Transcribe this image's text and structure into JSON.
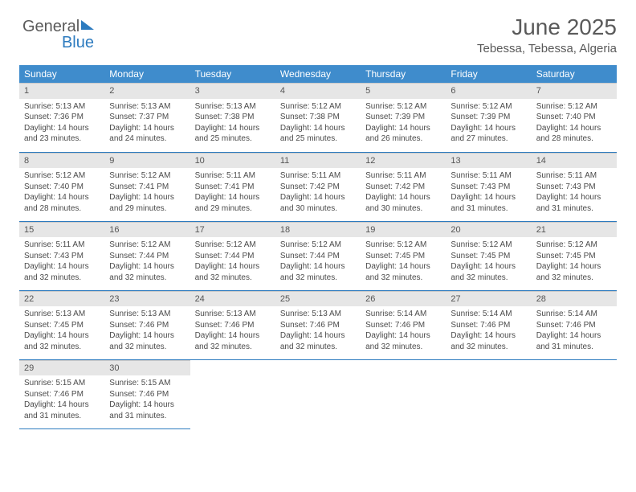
{
  "logo": {
    "text1": "General",
    "text2": "Blue"
  },
  "header": {
    "title": "June 2025",
    "subtitle": "Tebessa, Tebessa, Algeria"
  },
  "weekdays": [
    "Sunday",
    "Monday",
    "Tuesday",
    "Wednesday",
    "Thursday",
    "Friday",
    "Saturday"
  ],
  "weeks": [
    [
      {
        "n": "1",
        "rise": "Sunrise: 5:13 AM",
        "set": "Sunset: 7:36 PM",
        "d1": "Daylight: 14 hours",
        "d2": "and 23 minutes."
      },
      {
        "n": "2",
        "rise": "Sunrise: 5:13 AM",
        "set": "Sunset: 7:37 PM",
        "d1": "Daylight: 14 hours",
        "d2": "and 24 minutes."
      },
      {
        "n": "3",
        "rise": "Sunrise: 5:13 AM",
        "set": "Sunset: 7:38 PM",
        "d1": "Daylight: 14 hours",
        "d2": "and 25 minutes."
      },
      {
        "n": "4",
        "rise": "Sunrise: 5:12 AM",
        "set": "Sunset: 7:38 PM",
        "d1": "Daylight: 14 hours",
        "d2": "and 25 minutes."
      },
      {
        "n": "5",
        "rise": "Sunrise: 5:12 AM",
        "set": "Sunset: 7:39 PM",
        "d1": "Daylight: 14 hours",
        "d2": "and 26 minutes."
      },
      {
        "n": "6",
        "rise": "Sunrise: 5:12 AM",
        "set": "Sunset: 7:39 PM",
        "d1": "Daylight: 14 hours",
        "d2": "and 27 minutes."
      },
      {
        "n": "7",
        "rise": "Sunrise: 5:12 AM",
        "set": "Sunset: 7:40 PM",
        "d1": "Daylight: 14 hours",
        "d2": "and 28 minutes."
      }
    ],
    [
      {
        "n": "8",
        "rise": "Sunrise: 5:12 AM",
        "set": "Sunset: 7:40 PM",
        "d1": "Daylight: 14 hours",
        "d2": "and 28 minutes."
      },
      {
        "n": "9",
        "rise": "Sunrise: 5:12 AM",
        "set": "Sunset: 7:41 PM",
        "d1": "Daylight: 14 hours",
        "d2": "and 29 minutes."
      },
      {
        "n": "10",
        "rise": "Sunrise: 5:11 AM",
        "set": "Sunset: 7:41 PM",
        "d1": "Daylight: 14 hours",
        "d2": "and 29 minutes."
      },
      {
        "n": "11",
        "rise": "Sunrise: 5:11 AM",
        "set": "Sunset: 7:42 PM",
        "d1": "Daylight: 14 hours",
        "d2": "and 30 minutes."
      },
      {
        "n": "12",
        "rise": "Sunrise: 5:11 AM",
        "set": "Sunset: 7:42 PM",
        "d1": "Daylight: 14 hours",
        "d2": "and 30 minutes."
      },
      {
        "n": "13",
        "rise": "Sunrise: 5:11 AM",
        "set": "Sunset: 7:43 PM",
        "d1": "Daylight: 14 hours",
        "d2": "and 31 minutes."
      },
      {
        "n": "14",
        "rise": "Sunrise: 5:11 AM",
        "set": "Sunset: 7:43 PM",
        "d1": "Daylight: 14 hours",
        "d2": "and 31 minutes."
      }
    ],
    [
      {
        "n": "15",
        "rise": "Sunrise: 5:11 AM",
        "set": "Sunset: 7:43 PM",
        "d1": "Daylight: 14 hours",
        "d2": "and 32 minutes."
      },
      {
        "n": "16",
        "rise": "Sunrise: 5:12 AM",
        "set": "Sunset: 7:44 PM",
        "d1": "Daylight: 14 hours",
        "d2": "and 32 minutes."
      },
      {
        "n": "17",
        "rise": "Sunrise: 5:12 AM",
        "set": "Sunset: 7:44 PM",
        "d1": "Daylight: 14 hours",
        "d2": "and 32 minutes."
      },
      {
        "n": "18",
        "rise": "Sunrise: 5:12 AM",
        "set": "Sunset: 7:44 PM",
        "d1": "Daylight: 14 hours",
        "d2": "and 32 minutes."
      },
      {
        "n": "19",
        "rise": "Sunrise: 5:12 AM",
        "set": "Sunset: 7:45 PM",
        "d1": "Daylight: 14 hours",
        "d2": "and 32 minutes."
      },
      {
        "n": "20",
        "rise": "Sunrise: 5:12 AM",
        "set": "Sunset: 7:45 PM",
        "d1": "Daylight: 14 hours",
        "d2": "and 32 minutes."
      },
      {
        "n": "21",
        "rise": "Sunrise: 5:12 AM",
        "set": "Sunset: 7:45 PM",
        "d1": "Daylight: 14 hours",
        "d2": "and 32 minutes."
      }
    ],
    [
      {
        "n": "22",
        "rise": "Sunrise: 5:13 AM",
        "set": "Sunset: 7:45 PM",
        "d1": "Daylight: 14 hours",
        "d2": "and 32 minutes."
      },
      {
        "n": "23",
        "rise": "Sunrise: 5:13 AM",
        "set": "Sunset: 7:46 PM",
        "d1": "Daylight: 14 hours",
        "d2": "and 32 minutes."
      },
      {
        "n": "24",
        "rise": "Sunrise: 5:13 AM",
        "set": "Sunset: 7:46 PM",
        "d1": "Daylight: 14 hours",
        "d2": "and 32 minutes."
      },
      {
        "n": "25",
        "rise": "Sunrise: 5:13 AM",
        "set": "Sunset: 7:46 PM",
        "d1": "Daylight: 14 hours",
        "d2": "and 32 minutes."
      },
      {
        "n": "26",
        "rise": "Sunrise: 5:14 AM",
        "set": "Sunset: 7:46 PM",
        "d1": "Daylight: 14 hours",
        "d2": "and 32 minutes."
      },
      {
        "n": "27",
        "rise": "Sunrise: 5:14 AM",
        "set": "Sunset: 7:46 PM",
        "d1": "Daylight: 14 hours",
        "d2": "and 32 minutes."
      },
      {
        "n": "28",
        "rise": "Sunrise: 5:14 AM",
        "set": "Sunset: 7:46 PM",
        "d1": "Daylight: 14 hours",
        "d2": "and 31 minutes."
      }
    ],
    [
      {
        "n": "29",
        "rise": "Sunrise: 5:15 AM",
        "set": "Sunset: 7:46 PM",
        "d1": "Daylight: 14 hours",
        "d2": "and 31 minutes."
      },
      {
        "n": "30",
        "rise": "Sunrise: 5:15 AM",
        "set": "Sunset: 7:46 PM",
        "d1": "Daylight: 14 hours",
        "d2": "and 31 minutes."
      },
      null,
      null,
      null,
      null,
      null
    ]
  ],
  "colors": {
    "header_bg": "#3f8ccc",
    "rule": "#2d7bbf",
    "daynum_bg": "#e6e6e6",
    "text": "#4a4a4a"
  }
}
